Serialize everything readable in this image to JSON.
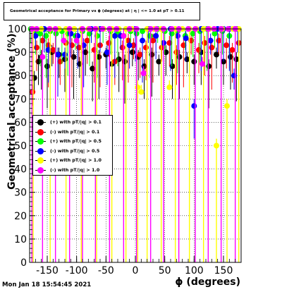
{
  "title": "Geometrical acceptance for Primary vs ϕ (degrees) at | η | <= 1.0 at pT > 0.11",
  "timestamp": "Mon Jan 18 15:54:45 2021",
  "chart_data": {
    "type": "scatter",
    "xlabel": "ϕ (degrees)",
    "ylabel": "Geometrical acceptance (%)",
    "xlim": [
      -180,
      180
    ],
    "ylim": [
      0,
      100
    ],
    "xticks": [
      -150,
      -100,
      -50,
      0,
      50,
      100,
      150
    ],
    "yticks": [
      0,
      10,
      20,
      30,
      40,
      50,
      60,
      70,
      80,
      90,
      100
    ],
    "grid": true,
    "legend_position": "middle-left",
    "series": [
      {
        "name": "(+) with pT/|q| > 0.1",
        "color": "#000000",
        "x": [
          -172,
          -165,
          -160,
          -150,
          -142,
          -130,
          -120,
          -105,
          -95,
          -85,
          -73,
          -62,
          -50,
          -40,
          -28,
          -18,
          -5,
          5,
          15,
          28,
          40,
          52,
          63,
          75,
          88,
          100,
          112,
          125,
          138,
          150,
          162,
          172
        ],
        "y": [
          79,
          86,
          88,
          84,
          90,
          89,
          87,
          88,
          85,
          90,
          83,
          88,
          89,
          85,
          87,
          86,
          90,
          88,
          84,
          89,
          86,
          90,
          84,
          88,
          87,
          86,
          90,
          84,
          89,
          86,
          88,
          87
        ]
      },
      {
        "name": "(-) with pT/|q| > 0.1",
        "color": "#ff0000",
        "x": [
          -175,
          -168,
          -158,
          -148,
          -140,
          -128,
          -118,
          -108,
          -96,
          -82,
          -70,
          -60,
          -45,
          -35,
          -22,
          -12,
          -3,
          8,
          18,
          30,
          45,
          58,
          70,
          82,
          95,
          108,
          118,
          130,
          142,
          155,
          165,
          176
        ],
        "y": [
          73,
          92,
          95,
          93,
          91,
          86,
          94,
          93,
          92,
          95,
          91,
          93,
          94,
          86,
          92,
          95,
          93,
          89,
          92,
          95,
          92,
          94,
          90,
          93,
          95,
          91,
          94,
          92,
          95,
          93,
          91,
          94
        ]
      },
      {
        "name": "(+) with pT/|q| > 0.5",
        "color": "#00ff00",
        "x": [
          -178,
          -170,
          -162,
          -152,
          -145,
          -135,
          -125,
          -115,
          -102,
          -90,
          -78,
          -65,
          -55,
          -42,
          -30,
          -20,
          -8,
          2,
          12,
          25,
          38,
          50,
          62,
          72,
          85,
          98,
          110,
          122,
          135,
          148,
          160,
          170
        ],
        "y": [
          100,
          99,
          98,
          97,
          99,
          98,
          99,
          98,
          97,
          99,
          98,
          97,
          100,
          99,
          98,
          97,
          99,
          98,
          99,
          97,
          100,
          99,
          98,
          99,
          97,
          98,
          99,
          100,
          98,
          99,
          97,
          100
        ]
      },
      {
        "name": "(-) with pT/|q| > 0.5",
        "color": "#0000ff",
        "x": [
          -170,
          -155,
          -148,
          -132,
          -120,
          -110,
          -98,
          -88,
          -75,
          -60,
          -48,
          -35,
          -25,
          -10,
          0,
          12,
          22,
          35,
          48,
          60,
          72,
          86,
          100,
          112,
          128,
          140,
          150,
          160,
          168,
          174
        ],
        "y": [
          97,
          100,
          91,
          89,
          89,
          98,
          97,
          93,
          100,
          100,
          90,
          97,
          97,
          93,
          100,
          95,
          100,
          97,
          94,
          100,
          97,
          96,
          67,
          100,
          95,
          100,
          100,
          100,
          80,
          100
        ]
      },
      {
        "name": "(+) with pT/|q| > 1.0",
        "color": "#ffff00",
        "x": [
          -174,
          -160,
          -145,
          -130,
          -118,
          -104,
          -92,
          -80,
          -66,
          -54,
          -40,
          -28,
          -16,
          -6,
          4,
          10,
          20,
          32,
          44,
          58,
          68,
          80,
          92,
          104,
          116,
          126,
          138,
          148,
          156,
          166,
          176
        ],
        "y": [
          100,
          100,
          100,
          100,
          100,
          100,
          100,
          100,
          100,
          100,
          100,
          100,
          100,
          100,
          75,
          73,
          100,
          100,
          100,
          75,
          100,
          100,
          100,
          100,
          100,
          100,
          50,
          100,
          67,
          100,
          100
        ]
      },
      {
        "name": "(-) with pT/|q| > 1.0",
        "color": "#ff00ff",
        "x": [
          -176,
          -168,
          -158,
          -146,
          -136,
          -122,
          -112,
          -100,
          -90,
          -78,
          -68,
          -56,
          -44,
          -32,
          -20,
          -10,
          2,
          14,
          26,
          36,
          48,
          62,
          74,
          90,
          102,
          114,
          124,
          134,
          146,
          158,
          170
        ],
        "y": [
          100,
          100,
          88,
          100,
          100,
          95,
          100,
          95,
          100,
          100,
          100,
          100,
          100,
          100,
          97,
          100,
          100,
          81,
          100,
          100,
          100,
          100,
          100,
          100,
          100,
          85,
          100,
          100,
          100,
          100,
          100
        ]
      }
    ]
  }
}
